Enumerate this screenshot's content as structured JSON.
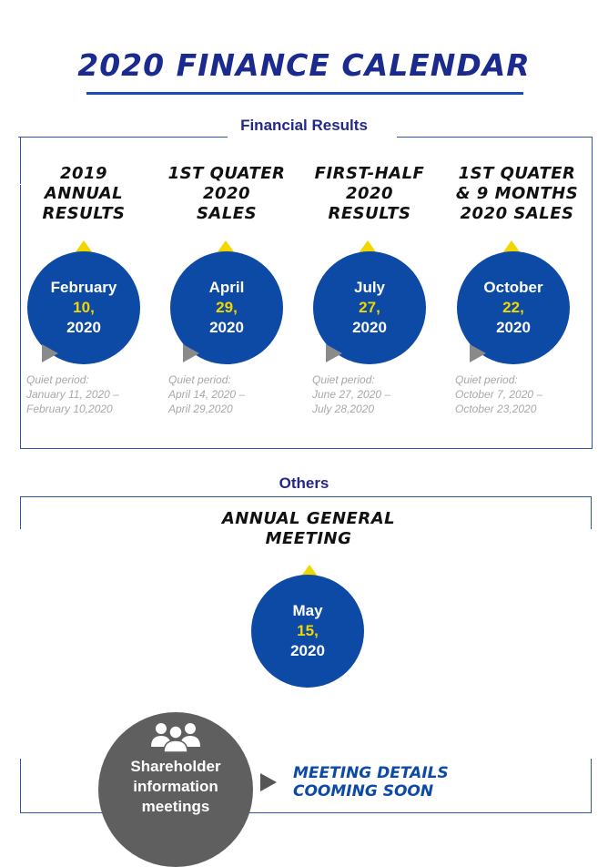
{
  "title": "2020 FINANCE CALENDAR",
  "sections": {
    "financial_results": "Financial Results",
    "others": "Others"
  },
  "events": [
    {
      "title_lines": [
        "2019",
        "ANNUAL",
        "RESULTS"
      ],
      "month": "February",
      "day": "10,",
      "year": "2020",
      "quiet_lines": [
        "Quiet period:",
        "January 11, 2020 –",
        "February 10,2020"
      ]
    },
    {
      "title_lines": [
        "1ST QUATER",
        "2020",
        "SALES"
      ],
      "month": "April",
      "day": "29,",
      "year": "2020",
      "quiet_lines": [
        "Quiet period:",
        "April 14, 2020 –",
        "April 29,2020"
      ]
    },
    {
      "title_lines": [
        "FIRST-HALF",
        "2020",
        "RESULTS"
      ],
      "month": "July",
      "day": "27,",
      "year": "2020",
      "quiet_lines": [
        "Quiet period:",
        "June 27, 2020 –",
        "July 28,2020"
      ]
    },
    {
      "title_lines": [
        "1ST QUATER",
        "& 9 MONTHS",
        "2020 SALES"
      ],
      "month": "October",
      "day": "22,",
      "year": "2020",
      "quiet_lines": [
        "Quiet period:",
        "October 7, 2020 –",
        "October 23,2020"
      ]
    }
  ],
  "agm": {
    "title_lines": [
      "ANNUAL GENERAL",
      "MEETING"
    ],
    "month": "May",
    "day": "15,",
    "year": "2020"
  },
  "shareholder": {
    "label_lines": [
      "Shareholder",
      "information",
      "meetings"
    ],
    "icon": "people-group-icon",
    "details_lines": [
      "MEETING DETAILS",
      "COOMING SOON"
    ]
  },
  "colors": {
    "title": "#1a2a8e",
    "circle": "#0d4aa6",
    "day": "#f2d600",
    "triangle": "#f2d600",
    "shareholder_circle": "#5f5f5f",
    "quiet_text": "#a8a8a8"
  }
}
